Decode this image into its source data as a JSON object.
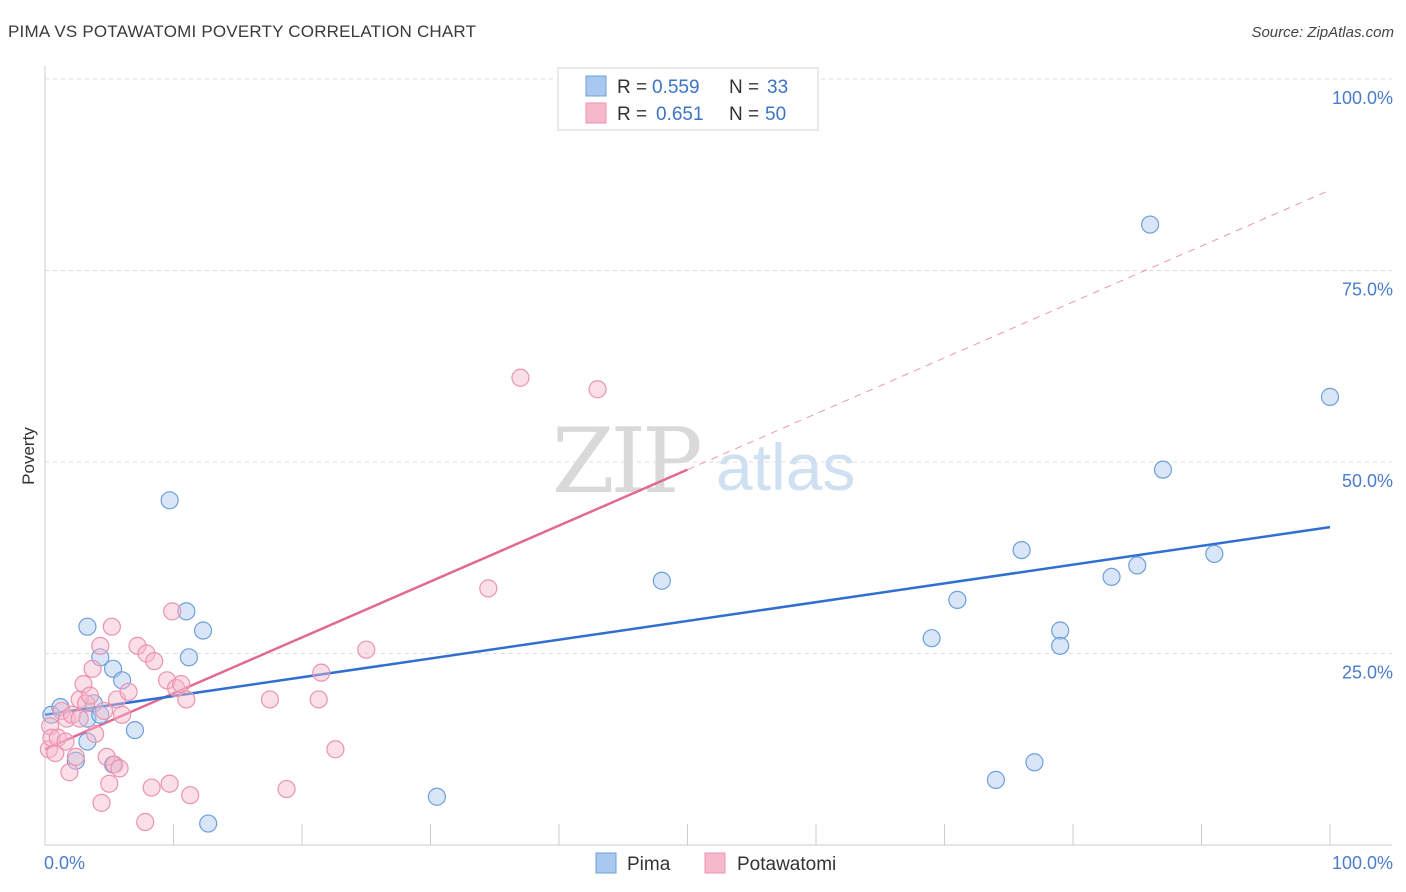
{
  "title": "PIMA VS POTAWATOMI POVERTY CORRELATION CHART",
  "source": "Source: ZipAtlas.com",
  "watermark": {
    "part1": "ZIP",
    "part2": "atlas"
  },
  "colors": {
    "pima_fill": "#a9c8ef",
    "pima_stroke": "#6f9fdb",
    "pima_line": "#2f6fd0",
    "pota_fill": "#f6b8cb",
    "pota_stroke": "#eb93ae",
    "pota_line": "#e26a92",
    "tick_text": "#4a7cc9",
    "grid": "#dddddd"
  },
  "legend": {
    "rows": [
      {
        "series": "Pima",
        "r_label": "R =",
        "r_value": "0.559",
        "n_label": "N =",
        "n_value": "33"
      },
      {
        "series": "Potawatomi",
        "r_label": "R =",
        "r_value": "0.651",
        "n_label": "N =",
        "n_value": "50"
      }
    ]
  },
  "chart_data": {
    "type": "scatter",
    "title": "PIMA VS POTAWATOMI POVERTY CORRELATION CHART",
    "xlabel": "",
    "ylabel": "Poverty",
    "xlim": [
      0,
      100
    ],
    "ylim": [
      0,
      100
    ],
    "x_tick_labels": [
      "0.0%",
      "100.0%"
    ],
    "y_ticks": [
      25,
      50,
      75,
      100
    ],
    "y_tick_labels": [
      "25.0%",
      "50.0%",
      "75.0%",
      "100.0%"
    ],
    "grid": true,
    "legend_position": "top-center",
    "series": [
      {
        "name": "Pima",
        "r": 0.559,
        "n": 33,
        "trend": {
          "x": [
            0,
            100
          ],
          "y": [
            17.0,
            41.5
          ],
          "extrapolated": false
        },
        "points": [
          [
            0.5,
            17
          ],
          [
            1.2,
            18
          ],
          [
            2.4,
            11
          ],
          [
            3.3,
            13.5
          ],
          [
            3.8,
            18.5
          ],
          [
            3.3,
            16.5
          ],
          [
            3.3,
            28.5
          ],
          [
            4.3,
            17
          ],
          [
            4.3,
            24.5
          ],
          [
            5.3,
            23
          ],
          [
            6.0,
            21.5
          ],
          [
            5.3,
            10.5
          ],
          [
            7.0,
            15
          ],
          [
            9.7,
            45
          ],
          [
            11,
            30.5
          ],
          [
            11.2,
            24.5
          ],
          [
            12.3,
            28
          ],
          [
            12.7,
            2.8
          ],
          [
            30.5,
            6.3
          ],
          [
            48,
            34.5
          ],
          [
            69,
            27
          ],
          [
            71,
            32
          ],
          [
            74,
            8.5
          ],
          [
            76,
            38.5
          ],
          [
            77,
            10.8
          ],
          [
            79,
            28
          ],
          [
            79,
            26
          ],
          [
            83,
            35
          ],
          [
            85,
            36.5
          ],
          [
            86,
            81
          ],
          [
            87,
            49
          ],
          [
            91,
            38
          ],
          [
            100,
            58.5
          ]
        ]
      },
      {
        "name": "Potawatomi",
        "r": 0.651,
        "n": 50,
        "trend": {
          "x": [
            0,
            50
          ],
          "y": [
            12.5,
            49.0
          ],
          "dashed_extension_x": [
            50,
            100
          ],
          "dashed_extension_y": [
            49.0,
            85.5
          ]
        },
        "points": [
          [
            0.3,
            12.5
          ],
          [
            0.4,
            15.5
          ],
          [
            0.5,
            14
          ],
          [
            0.8,
            12
          ],
          [
            1.0,
            14
          ],
          [
            1.3,
            17.5
          ],
          [
            1.6,
            13.5
          ],
          [
            1.7,
            16.5
          ],
          [
            1.9,
            9.5
          ],
          [
            2.1,
            17
          ],
          [
            2.4,
            11.5
          ],
          [
            2.7,
            16.5
          ],
          [
            2.7,
            19
          ],
          [
            3.0,
            21
          ],
          [
            3.2,
            18.5
          ],
          [
            3.5,
            19.5
          ],
          [
            3.7,
            23
          ],
          [
            3.9,
            14.5
          ],
          [
            4.3,
            26
          ],
          [
            4.4,
            5.5
          ],
          [
            4.6,
            17.5
          ],
          [
            4.8,
            11.5
          ],
          [
            5.0,
            8
          ],
          [
            5.2,
            28.5
          ],
          [
            5.4,
            10.5
          ],
          [
            5.6,
            19
          ],
          [
            5.8,
            10
          ],
          [
            6.0,
            17
          ],
          [
            6.5,
            20
          ],
          [
            7.2,
            26
          ],
          [
            7.8,
            3
          ],
          [
            7.9,
            25
          ],
          [
            8.3,
            7.5
          ],
          [
            8.5,
            24
          ],
          [
            9.5,
            21.5
          ],
          [
            9.7,
            8
          ],
          [
            9.9,
            30.5
          ],
          [
            10.2,
            20.5
          ],
          [
            10.6,
            21
          ],
          [
            11,
            19
          ],
          [
            11.3,
            6.5
          ],
          [
            17.5,
            19
          ],
          [
            18.8,
            7.3
          ],
          [
            21.3,
            19
          ],
          [
            21.5,
            22.5
          ],
          [
            22.6,
            12.5
          ],
          [
            25,
            25.5
          ],
          [
            34.5,
            33.5
          ],
          [
            37,
            61
          ],
          [
            43,
            59.5
          ]
        ]
      }
    ]
  }
}
